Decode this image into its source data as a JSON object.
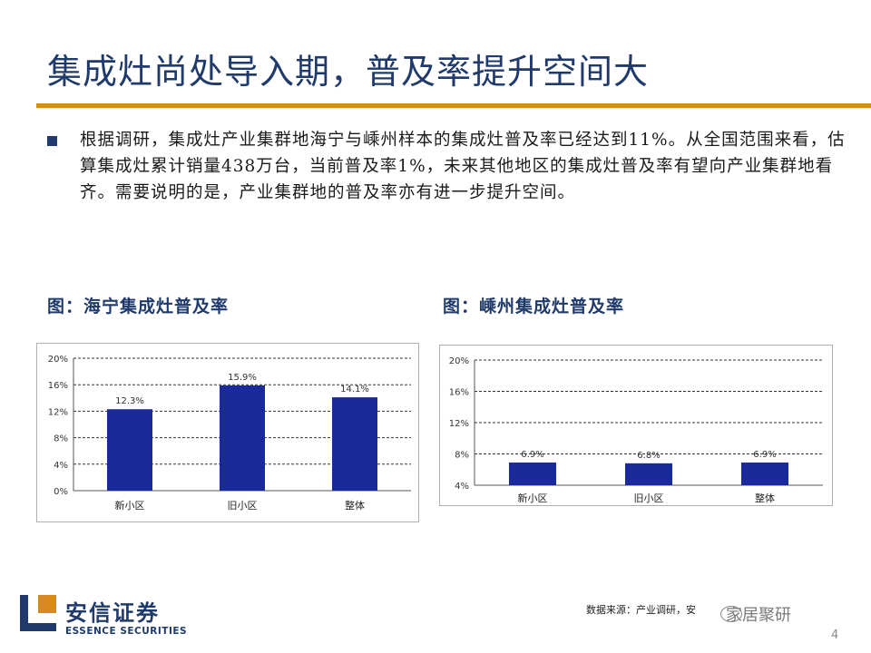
{
  "title": "集成灶尚处导入期，普及率提升空间大",
  "paragraph": "根据调研，集成灶产业集群地海宁与嵊州样本的集成灶普及率已经达到11%。从全国范围来看，估算集成灶累计销量438万台，当前普及率1%，未来其他地区的集成灶普及率有望向产业集群地看齐。需要说明的是，产业集群地的普及率亦有进一步提升空间。",
  "figures": [
    {
      "caption": "图：海宁集成灶普及率"
    },
    {
      "caption": "图：嵊州集成灶普及率"
    }
  ],
  "chart_data": [
    {
      "type": "bar",
      "categories": [
        "新小区",
        "旧小区",
        "整体"
      ],
      "values": [
        12.3,
        15.9,
        14.1
      ],
      "value_labels": [
        "12.3%",
        "15.9%",
        "14.1%"
      ],
      "yticks": [
        "0%",
        "4%",
        "8%",
        "12%",
        "16%",
        "20%"
      ],
      "ylim": [
        0,
        20
      ],
      "bar_color": "#1a2a9a",
      "grid": "dashed"
    },
    {
      "type": "bar",
      "categories": [
        "新小区",
        "旧小区",
        "整体"
      ],
      "values": [
        6.9,
        6.8,
        6.9
      ],
      "value_labels": [
        "6.9%",
        "6.8%",
        "6.9%"
      ],
      "yticks": [
        "4%",
        "8%",
        "12%",
        "16%",
        "20%"
      ],
      "ylim": [
        4,
        20
      ],
      "bar_color": "#1a2a9a",
      "grid": "dashed"
    }
  ],
  "source": "数据来源：产业调研，安",
  "watermark": "家居聚研",
  "page_number": "4",
  "logo": {
    "cn": "安信证券",
    "en": "ESSENCE SECURITIES"
  },
  "colors": {
    "title": "#1f3a6b",
    "rule": "#d98a1e",
    "bar": "#1a2a9a"
  }
}
